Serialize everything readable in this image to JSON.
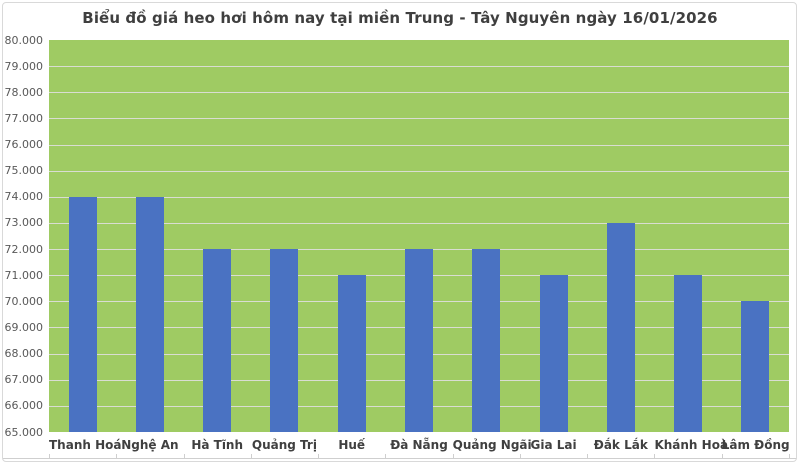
{
  "chart_data": {
    "type": "bar",
    "title": "Biểu đồ giá heo hơi hôm nay tại miền Trung - Tây Nguyên ngày 16/01/2026",
    "categories": [
      "Thanh Hoá",
      "Nghệ An",
      "Hà Tĩnh",
      "Quảng Trị",
      "Huế",
      "Đà Nẵng",
      "Quảng Ngãi",
      "Gia Lai",
      "Đắk Lắk",
      "Khánh Hoà",
      "Lâm Đồng"
    ],
    "values": [
      74000,
      74000,
      72000,
      72000,
      71000,
      72000,
      72000,
      71000,
      73000,
      71000,
      70000
    ],
    "xlabel": "",
    "ylabel": "",
    "ylim": [
      65000,
      80000
    ],
    "y_tick_step": 1000,
    "y_tick_labels": [
      "80.000",
      "79.000",
      "78.000",
      "77.000",
      "76.000",
      "75.000",
      "74.000",
      "73.000",
      "72.000",
      "71.000",
      "70.000",
      "69.000",
      "68.000",
      "67.000",
      "66.000",
      "65.000"
    ],
    "grid": true,
    "legend_position": "none",
    "colors": {
      "bar": "#4A72C2",
      "plot_background": "#9FCB63",
      "gridline": "#D9DDD2",
      "outer_border": "#D9D9D9",
      "title_text": "#3F3F3F",
      "y_label_text": "#595959",
      "x_label_text": "#404040",
      "axis_line": "#CFCFCF"
    }
  }
}
